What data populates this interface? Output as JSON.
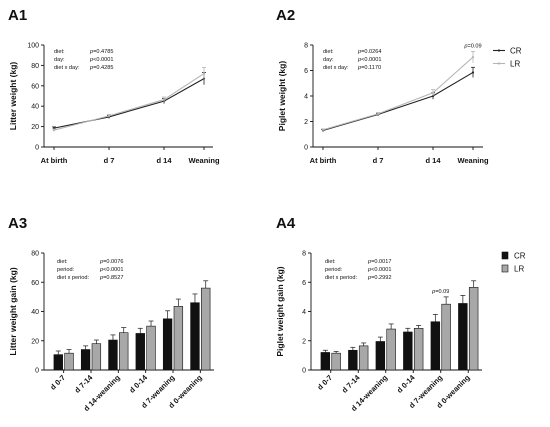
{
  "chart_data": [
    {
      "panel": "A1",
      "type": "line",
      "ylabel": "Litter weight (kg)",
      "categories": [
        "At birth",
        "d 7",
        "d 14",
        "Weaning"
      ],
      "ylim": [
        0,
        100
      ],
      "yticks": [
        0,
        20,
        40,
        60,
        80,
        100
      ],
      "series": [
        {
          "values": [
            18.5,
            29.5,
            45,
            67
          ],
          "errors": [
            1.2,
            1.5,
            2.5,
            6
          ],
          "color": "#222222"
        },
        {
          "values": [
            16.5,
            30.5,
            46.5,
            72
          ],
          "errors": [
            1.2,
            1.5,
            2.5,
            6
          ],
          "color": "#b5b5b5"
        }
      ],
      "stats": [
        [
          "diet:",
          "p=0.4785"
        ],
        [
          "day:",
          "p<0.0001"
        ],
        [
          "diet x day:",
          "p=0.4285"
        ]
      ]
    },
    {
      "panel": "A2",
      "type": "line",
      "ylabel": "Piglet weight (kg)",
      "categories": [
        "At birth",
        "d 7",
        "d 14",
        "Weaning"
      ],
      "ylim": [
        0,
        8
      ],
      "yticks": [
        0,
        2,
        4,
        6,
        8
      ],
      "series": [
        {
          "name": "CR",
          "values": [
            1.3,
            2.55,
            4.0,
            5.85
          ],
          "errors": [
            0.07,
            0.1,
            0.25,
            0.4
          ],
          "color": "#222222"
        },
        {
          "name": "LR",
          "values": [
            1.35,
            2.6,
            4.25,
            7.05
          ],
          "errors": [
            0.07,
            0.1,
            0.25,
            0.45
          ],
          "color": "#b5b5b5"
        }
      ],
      "annotations": [
        {
          "text": "p=0.09",
          "category": "Weaning"
        }
      ],
      "stats": [
        [
          "diet:",
          "p=0.0264"
        ],
        [
          "day:",
          "p<0.0001"
        ],
        [
          "diet x day:",
          "p=0.1170"
        ]
      ],
      "legend_position": "top-right"
    },
    {
      "panel": "A3",
      "type": "bar",
      "ylabel": "Litter weight gain (kg)",
      "categories": [
        "d 0-7",
        "d 7-14",
        "d 14-weaning",
        "d 0-14",
        "d 7-weaning",
        "d 0-weaning"
      ],
      "ylim": [
        0,
        80
      ],
      "yticks": [
        0,
        20,
        40,
        60,
        80
      ],
      "series": [
        {
          "values": [
            10.5,
            14,
            20.5,
            25,
            35,
            46
          ],
          "errors": [
            2.5,
            2.5,
            3.5,
            3.5,
            5.5,
            6
          ],
          "color": "#111111"
        },
        {
          "values": [
            11.5,
            18,
            25.5,
            30,
            43.5,
            56
          ],
          "errors": [
            2.5,
            2.5,
            3.5,
            3.5,
            5,
            5
          ],
          "color": "#a8a8a8"
        }
      ],
      "stats": [
        [
          "diet:",
          "p=0.0076"
        ],
        [
          "period:",
          "p<0.0001"
        ],
        [
          "diet x period:",
          "p=0.8527"
        ]
      ]
    },
    {
      "panel": "A4",
      "type": "bar",
      "ylabel": "Piglet weight gain (kg)",
      "categories": [
        "d 0-7",
        "d 7-14",
        "d 14-weaning",
        "d 0-14",
        "d 7-weaning",
        "d 0-weaning"
      ],
      "ylim": [
        0,
        8
      ],
      "yticks": [
        0,
        2,
        4,
        6,
        8
      ],
      "series": [
        {
          "name": "CR",
          "values": [
            1.2,
            1.35,
            1.95,
            2.6,
            3.3,
            4.55
          ],
          "errors": [
            0.15,
            0.2,
            0.3,
            0.25,
            0.5,
            0.55
          ],
          "color": "#111111"
        },
        {
          "name": "LR",
          "values": [
            1.15,
            1.65,
            2.8,
            2.85,
            4.5,
            5.65
          ],
          "errors": [
            0.12,
            0.2,
            0.35,
            0.2,
            0.5,
            0.45
          ],
          "color": "#a8a8a8"
        }
      ],
      "annotations": [
        {
          "text": "p=0.09",
          "category": "d 7-weaning"
        }
      ],
      "stats": [
        [
          "diet:",
          "p=0.0017"
        ],
        [
          "period:",
          "p<0.0001"
        ],
        [
          "diet x period:",
          "p=0.2992"
        ]
      ],
      "legend_position": "top-right"
    }
  ]
}
